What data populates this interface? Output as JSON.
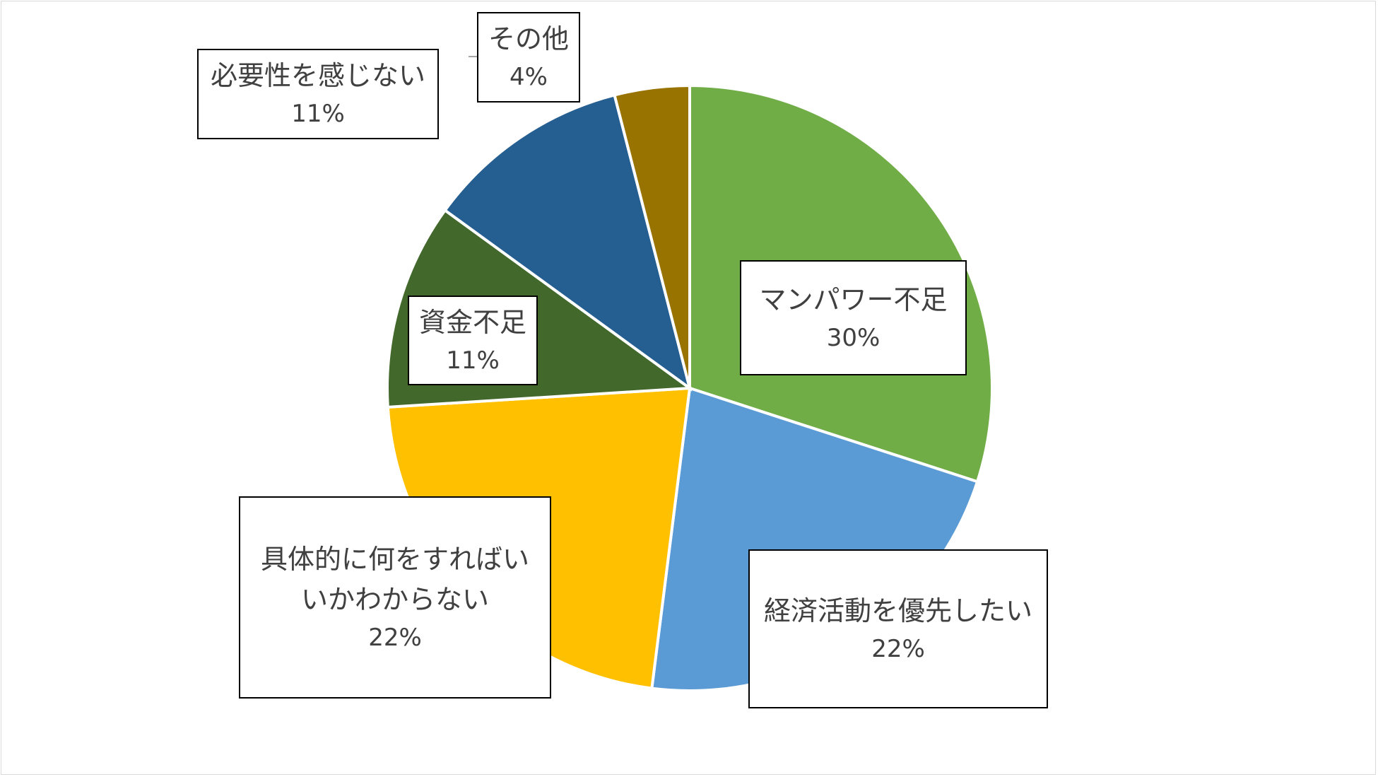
{
  "chart_data": {
    "type": "pie",
    "start_angle_deg": 0,
    "direction": "clockwise",
    "slices": [
      {
        "label": "マンパワー不足",
        "value": 30,
        "value_label": "30%",
        "color": "#70ad47"
      },
      {
        "label": "経済活動を優先したい",
        "value": 22,
        "value_label": "22%",
        "color": "#5b9bd5"
      },
      {
        "label": "具体的に何をすればいいかわからない",
        "value": 22,
        "value_label": "22%",
        "color": "#ffc000"
      },
      {
        "label": "資金不足",
        "value": 11,
        "value_label": "11%",
        "color": "#43682b"
      },
      {
        "label": "必要性を感じない",
        "value": 11,
        "value_label": "11%",
        "color": "#255e91"
      },
      {
        "label": "その他",
        "value": 4,
        "value_label": "4%",
        "color": "#997300"
      }
    ],
    "display_labels": [
      "マンパワー不足",
      "経済活動を優先したい",
      "具体的に何をすればい\nいかわからない",
      "資金不足",
      "必要性を感じない",
      "その他"
    ],
    "legend": "none",
    "data_labels": "category and percentage in boxed callouts"
  }
}
